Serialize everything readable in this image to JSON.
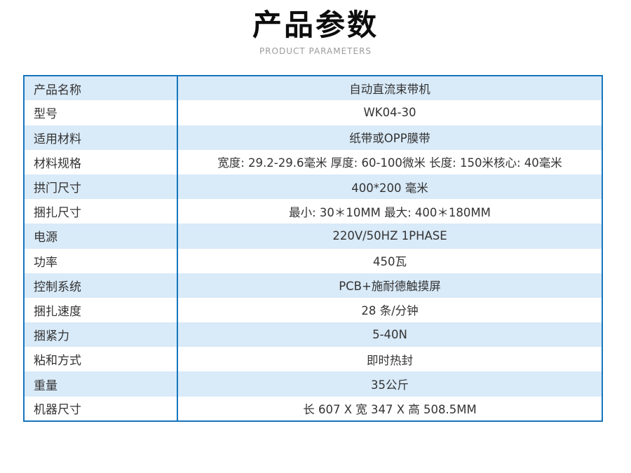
{
  "header": {
    "title": "产品参数",
    "subtitle": "PRODUCT PARAMETERS"
  },
  "table": {
    "rows": [
      {
        "label": "产品名称",
        "value": "自动直流束带机"
      },
      {
        "label": "型号",
        "value": "WK04-30"
      },
      {
        "label": "适用材料",
        "value": "纸带或OPP膜带"
      },
      {
        "label": "材料规格",
        "value": "宽度: 29.2-29.6毫米 厚度: 60-100微米 长度: 150米核心: 40毫米"
      },
      {
        "label": "拱门尺寸",
        "value": "400*200 毫米"
      },
      {
        "label": "捆扎尺寸",
        "value": "最小: 30＊10MM 最大: 400＊180MM"
      },
      {
        "label": "电源",
        "value": "220V/50HZ 1PHASE"
      },
      {
        "label": "功率",
        "value": "450瓦"
      },
      {
        "label": "控制系统",
        "value": "PCB+施耐德触摸屏"
      },
      {
        "label": "捆扎速度",
        "value": "28 条/分钟"
      },
      {
        "label": "捆紧力",
        "value": "5-40N"
      },
      {
        "label": "粘和方式",
        "value": "即时热封"
      },
      {
        "label": "重量",
        "value": "35公斤"
      },
      {
        "label": "机器尺寸",
        "value": "长 607 X 宽 347 X 高 508.5MM"
      }
    ]
  },
  "colors": {
    "border_blue": "#1575bd",
    "row_alt_blue": "#d9eaf8",
    "text": "#333333",
    "subtitle_gray": "#9b9b9b"
  }
}
